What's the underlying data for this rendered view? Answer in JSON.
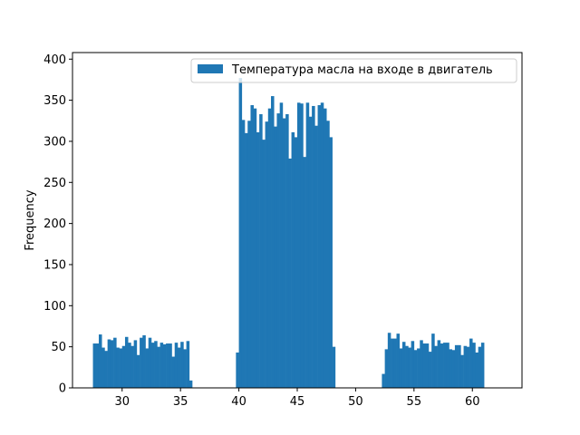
{
  "chart_data": {
    "type": "bar",
    "title": "",
    "xlabel": "",
    "ylabel": "Frequency",
    "xlim": [
      25.75,
      64.25
    ],
    "ylim": [
      0,
      408
    ],
    "x_ticks": [
      30,
      35,
      40,
      45,
      50,
      55,
      60
    ],
    "x_tick_labels": [
      "30",
      "35",
      "40",
      "45",
      "50",
      "55",
      "60"
    ],
    "y_ticks": [
      0,
      50,
      100,
      150,
      200,
      250,
      300,
      350,
      400
    ],
    "y_tick_labels": [
      "0",
      "50",
      "100",
      "150",
      "200",
      "250",
      "300",
      "350",
      "400"
    ],
    "grid": false,
    "legend_position": "top-right",
    "bin_start": 27.5,
    "bin_width": 0.25,
    "series": [
      {
        "name": "Температура масла на входе в двигатель",
        "color": "#1f77b4",
        "values": [
          54,
          54,
          65,
          49,
          45,
          59,
          58,
          61,
          49,
          48,
          51,
          62,
          55,
          51,
          58,
          40,
          61,
          64,
          48,
          61,
          55,
          57,
          50,
          55,
          53,
          54,
          54,
          38,
          55,
          49,
          56,
          47,
          57,
          9,
          0,
          0,
          0,
          0,
          0,
          0,
          0,
          0,
          0,
          0,
          0,
          0,
          0,
          0,
          0,
          43,
          377,
          326,
          310,
          325,
          344,
          340,
          311,
          333,
          302,
          324,
          340,
          355,
          318,
          334,
          347,
          328,
          333,
          279,
          311,
          305,
          347,
          346,
          281,
          347,
          330,
          343,
          319,
          344,
          347,
          340,
          325,
          305,
          50,
          0,
          0,
          0,
          0,
          0,
          0,
          0,
          0,
          0,
          0,
          0,
          0,
          0,
          0,
          0,
          0,
          17,
          47,
          67,
          60,
          60,
          66,
          48,
          56,
          51,
          49,
          57,
          46,
          48,
          58,
          54,
          54,
          44,
          66,
          51,
          58,
          54,
          55,
          55,
          47,
          46,
          52,
          52,
          40,
          51,
          50,
          60,
          55,
          43,
          50,
          55
        ]
      }
    ]
  }
}
